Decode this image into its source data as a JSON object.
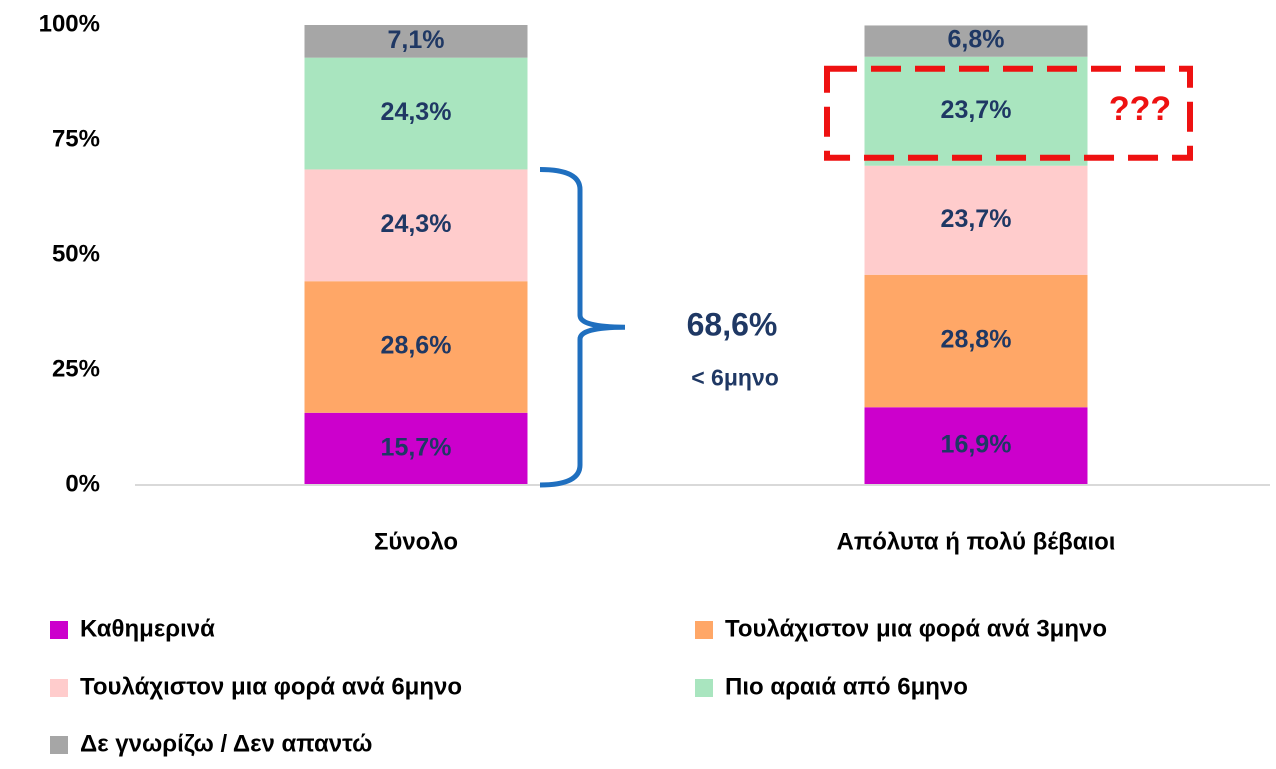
{
  "chart_data": {
    "type": "stacked-bar",
    "categories": [
      "Σύνολο",
      "Απόλυτα ή πολύ βέβαιοι"
    ],
    "series": [
      {
        "name": "Καθημερινά",
        "color": "#cc00cc",
        "values": [
          15.7,
          16.9
        ],
        "value_labels": [
          "15,7%",
          "16,9%"
        ]
      },
      {
        "name": "Τουλάχιστον μια φορά ανά 3μηνο",
        "color": "#ffa767",
        "values": [
          28.6,
          28.8
        ],
        "value_labels": [
          "28,6%",
          "28,8%"
        ]
      },
      {
        "name": "Τουλάχιστον μια φορά ανά 6μηνο",
        "color": "#ffcccc",
        "values": [
          24.3,
          23.7
        ],
        "value_labels": [
          "24,3%",
          "23,7%"
        ]
      },
      {
        "name": "Πιο αραιά από 6μηνο",
        "color": "#a9e5bf",
        "values": [
          24.3,
          23.7
        ],
        "value_labels": [
          "24,3%",
          "23,7%"
        ]
      },
      {
        "name": "Δε γνωρίζω / Δεν απαντώ",
        "color": "#a6a6a6",
        "values": [
          7.1,
          6.8
        ],
        "value_labels": [
          "7,1%",
          "6,8%"
        ]
      }
    ],
    "ylim": [
      0,
      100
    ],
    "yticks": [
      {
        "value": 0,
        "label": "0%"
      },
      {
        "value": 25,
        "label": "25%"
      },
      {
        "value": 50,
        "label": "50%"
      },
      {
        "value": 75,
        "label": "75%"
      },
      {
        "value": 100,
        "label": "100%"
      }
    ],
    "grid": false,
    "annotations": [
      {
        "value": 68.6,
        "label": "68,6%",
        "sublabel": "< 6μηνο"
      },
      {
        "label": "???"
      }
    ]
  }
}
